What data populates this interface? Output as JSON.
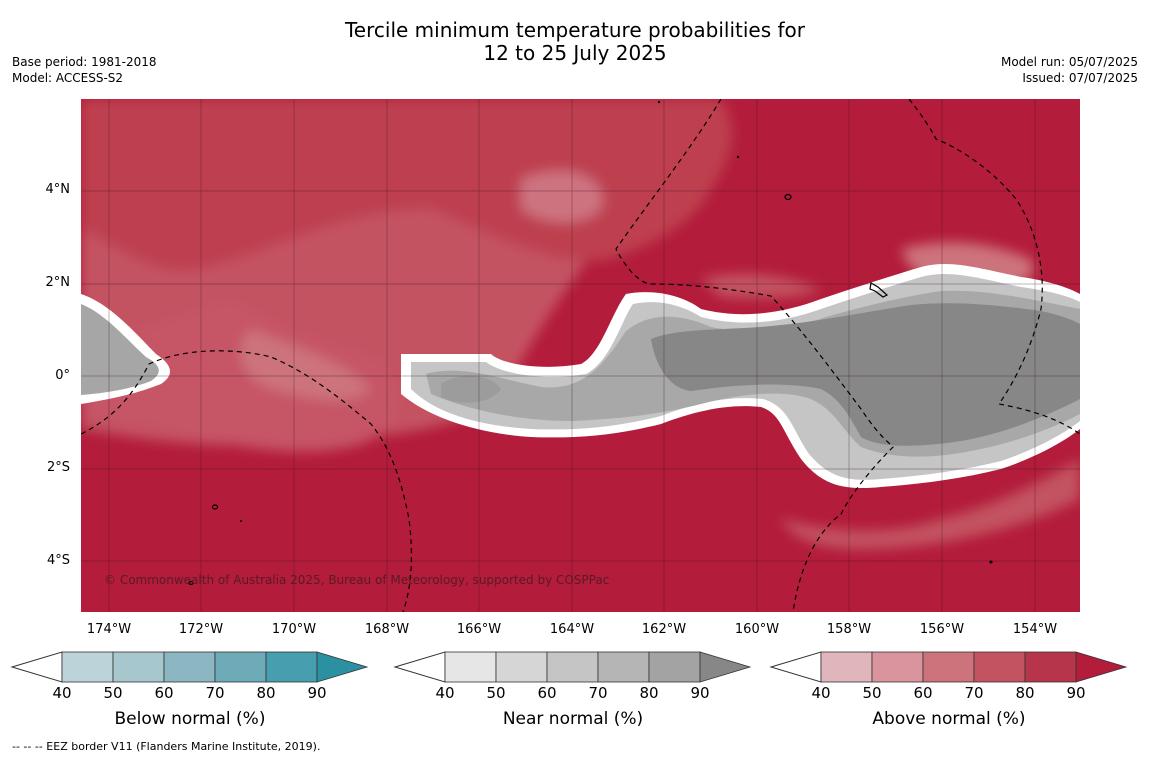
{
  "title": {
    "line1": "Tercile minimum temperature probabilities for",
    "line2": "12 to 25 July 2025"
  },
  "meta": {
    "base_period": "Base period: 1981-2018",
    "model": "Model: ACCESS-S2",
    "model_run": "Model run: 05/07/2025",
    "issued": "Issued: 07/07/2025"
  },
  "map": {
    "lat_labels": [
      "4°N",
      "2°N",
      "0°",
      "2°S",
      "4°S"
    ],
    "lon_labels": [
      "174°W",
      "172°W",
      "170°W",
      "168°W",
      "166°W",
      "164°W",
      "162°W",
      "160°W",
      "158°W",
      "156°W",
      "154°W"
    ],
    "copyright": "© Commonwealth of Australia 2025, Bureau of Meteorology, supported by COSPPac",
    "colors": {
      "above_bg": "#b31c3b",
      "near_core": "#878787",
      "border": "#ffffff"
    }
  },
  "colorbars": [
    {
      "name": "below",
      "title": "Below normal (%)",
      "ticks": [
        "40",
        "50",
        "60",
        "70",
        "80",
        "90"
      ],
      "colors": [
        "#bcd3da",
        "#a6c7cd",
        "#8bb6c2",
        "#6eabb9",
        "#479eaf",
        "#2a90a2"
      ]
    },
    {
      "name": "near",
      "title": "Near normal (%)",
      "ticks": [
        "40",
        "50",
        "60",
        "70",
        "80",
        "90"
      ],
      "colors": [
        "#e6e6e6",
        "#d6d6d6",
        "#c5c5c5",
        "#b5b5b5",
        "#a3a3a3",
        "#878787"
      ]
    },
    {
      "name": "above",
      "title": "Above normal (%)",
      "ticks": [
        "40",
        "50",
        "60",
        "70",
        "80",
        "90"
      ],
      "colors": [
        "#e1b5bc",
        "#d9949e",
        "#cd737c",
        "#c35360",
        "#b7354b",
        "#b31c3b"
      ]
    }
  ],
  "footnote": "--  --  -- EEZ border V11 (Flanders Marine Institute, 2019)."
}
